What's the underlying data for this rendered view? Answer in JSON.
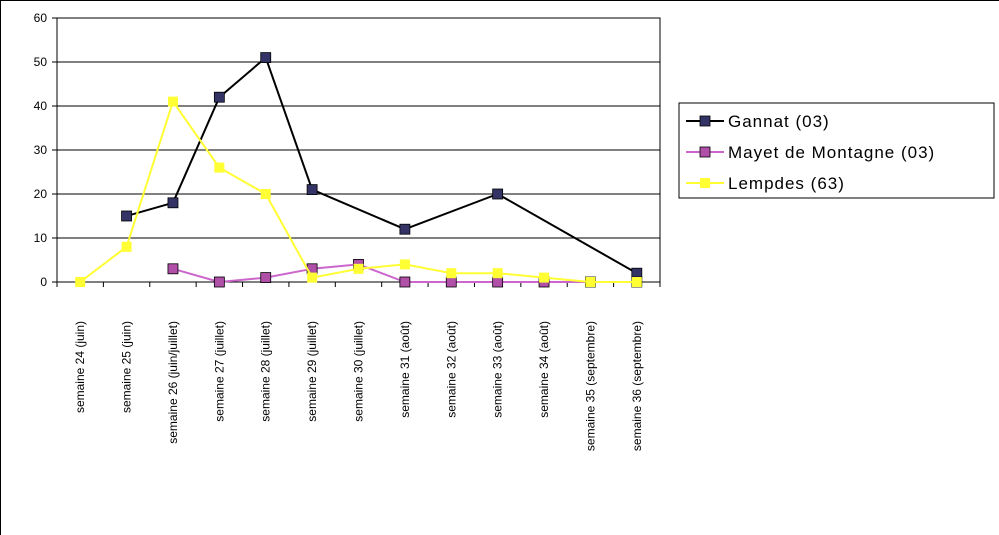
{
  "chart_data": {
    "type": "line",
    "title": "",
    "xlabel": "",
    "ylabel": "",
    "ylim": [
      0,
      60
    ],
    "yticks": [
      0,
      10,
      20,
      30,
      40,
      50,
      60
    ],
    "grid": true,
    "legend_position": "right",
    "categories": [
      "semaine 24 (juin)",
      "semaine 25 (juin)",
      "semaine 26 (juin/juillet)",
      "semaine 27 (juillet)",
      "semaine 28 (juillet)",
      "semaine 29 (juillet)",
      "semaine 30 (juillet)",
      "semaine 31 (août)",
      "semaine 32 (août)",
      "semaine 33 (août)",
      "semaine 34 (août)",
      "semaine 35 (septembre)",
      "semaine 36 (septembre)"
    ],
    "series": [
      {
        "name": "Gannat (03)",
        "line_color": "#000000",
        "marker_color": "#333366",
        "values": [
          null,
          15,
          18,
          42,
          51,
          21,
          null,
          12,
          null,
          20,
          null,
          null,
          2
        ]
      },
      {
        "name": "Mayet de Montagne (03)",
        "line_color": "#CC66CC",
        "marker_color": "#B050A8",
        "values": [
          null,
          null,
          3,
          0,
          1,
          3,
          4,
          0,
          0,
          0,
          0,
          0,
          0
        ]
      },
      {
        "name": "Lempdes (63)",
        "line_color": "#FFFF33",
        "marker_color": "#FFFF33",
        "values": [
          0,
          8,
          41,
          26,
          20,
          1,
          3,
          4,
          2,
          2,
          1,
          0,
          0
        ]
      }
    ]
  }
}
